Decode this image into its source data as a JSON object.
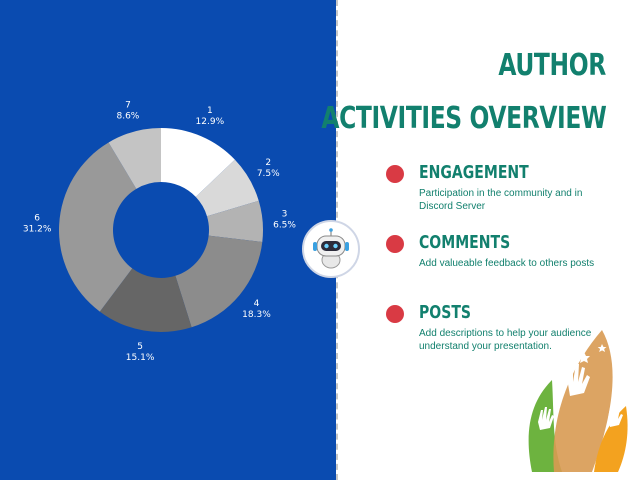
{
  "title": {
    "line1": "AUTHOR",
    "line2": "ACTIVITIES OVERVIEW"
  },
  "items": [
    {
      "heading": "ENGAGEMENT",
      "description": "Participation in the community and in Discord Server"
    },
    {
      "heading": "COMMENTS",
      "description": "Add valueable feedback to others posts"
    },
    {
      "heading": "POSTS",
      "description": "Add descriptions to help your audience understand your presentation."
    }
  ],
  "colors": {
    "panel_background": "#0a4bb0",
    "accent_teal": "#12806e",
    "bullet_red": "#d93a44"
  },
  "chart_data": {
    "type": "pie",
    "variant": "donut",
    "slices": [
      {
        "label": "1",
        "value": 12.9,
        "value_label": "12.9%",
        "color": "#ffffff"
      },
      {
        "label": "2",
        "value": 7.5,
        "value_label": "7.5%",
        "color": "#d9d9d9"
      },
      {
        "label": "3",
        "value": 6.5,
        "value_label": "6.5%",
        "color": "#b3b3b3"
      },
      {
        "label": "4",
        "value": 18.3,
        "value_label": "18.3%",
        "color": "#8c8c8c"
      },
      {
        "label": "5",
        "value": 15.1,
        "value_label": "15.1%",
        "color": "#666666"
      },
      {
        "label": "6",
        "value": 31.2,
        "value_label": "31.2%",
        "color": "#999999"
      },
      {
        "label": "7",
        "value": 8.6,
        "value_label": "8.6%",
        "color": "#c4c4c4"
      }
    ]
  }
}
